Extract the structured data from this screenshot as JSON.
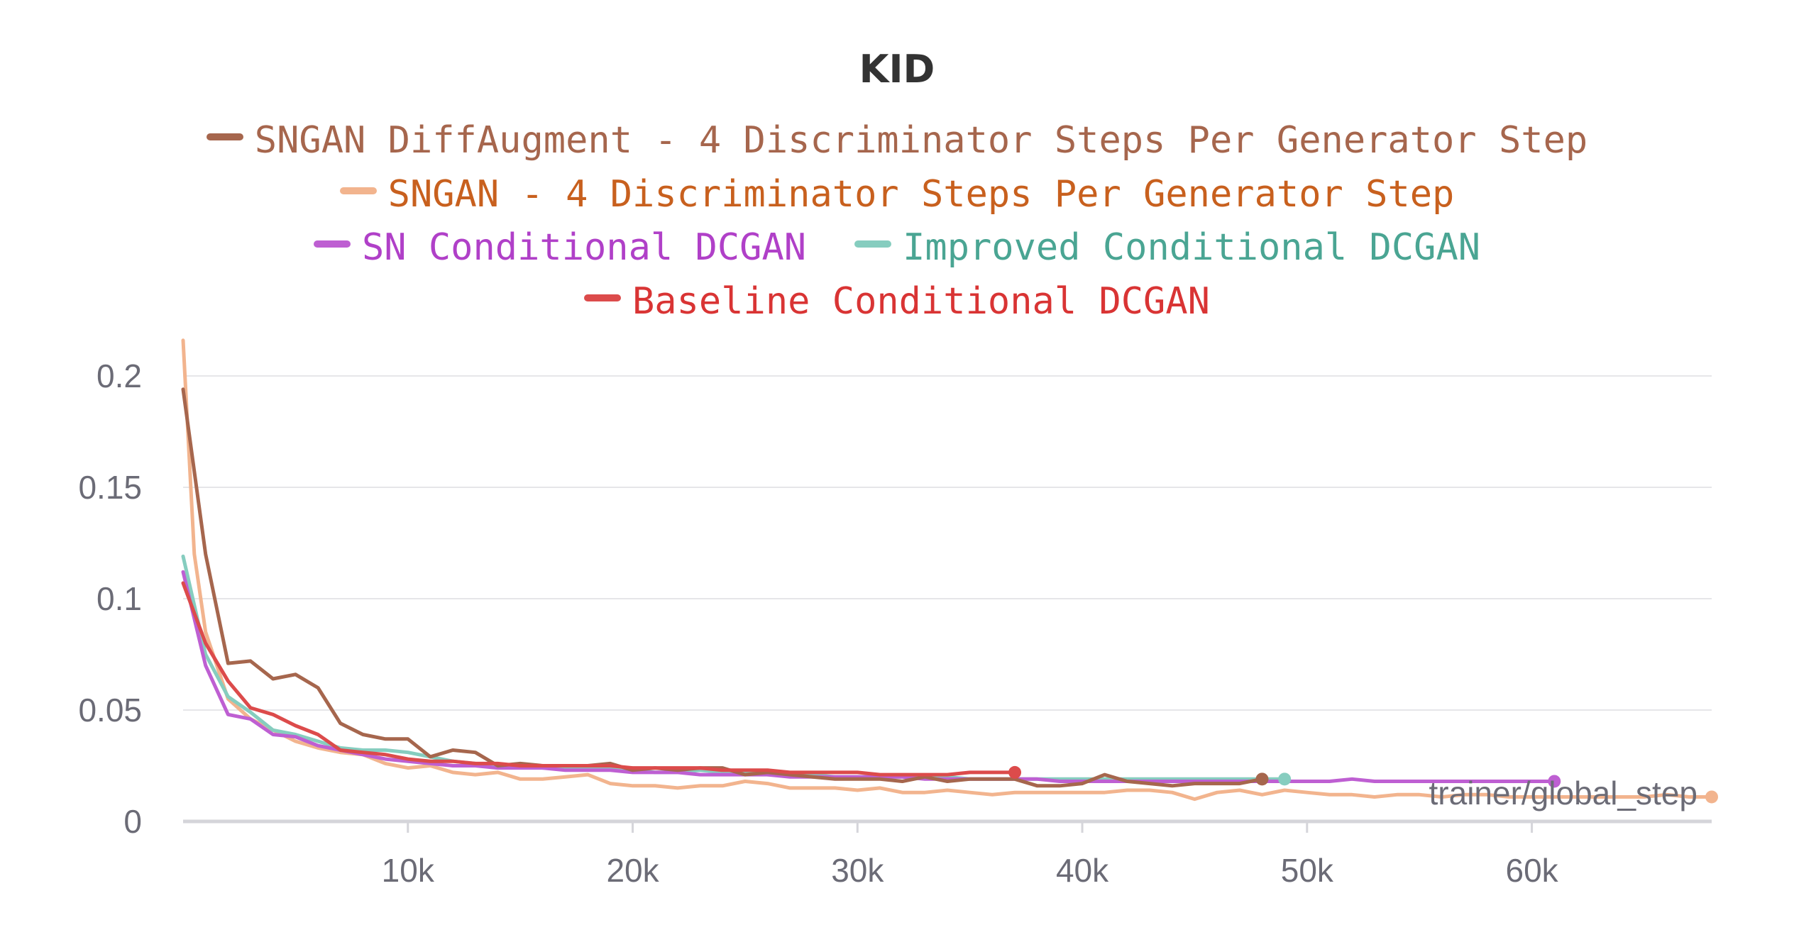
{
  "chart_data": {
    "type": "line",
    "title": "KID",
    "xlabel": "trainer/global_step",
    "ylabel": "",
    "xlim": [
      0,
      68000
    ],
    "ylim": [
      0,
      0.2
    ],
    "x_ticks": [
      {
        "value": 10000,
        "label": "10k"
      },
      {
        "value": 20000,
        "label": "20k"
      },
      {
        "value": 30000,
        "label": "30k"
      },
      {
        "value": 40000,
        "label": "40k"
      },
      {
        "value": 50000,
        "label": "50k"
      },
      {
        "value": 60000,
        "label": "60k"
      }
    ],
    "y_ticks": [
      {
        "value": 0,
        "label": "0"
      },
      {
        "value": 0.05,
        "label": "0.05"
      },
      {
        "value": 0.1,
        "label": "0.1"
      },
      {
        "value": 0.15,
        "label": "0.15"
      },
      {
        "value": 0.2,
        "label": "0.2"
      }
    ],
    "grid": true,
    "legend_position": "top",
    "series": [
      {
        "name": "SNGAN - 4 Discriminator Steps Per Generator Step",
        "color": "#f2b48e",
        "text_color": "#c8601e",
        "end_marker": true,
        "x": [
          0,
          500,
          1000,
          2000,
          3000,
          4000,
          5000,
          6000,
          7000,
          8000,
          9000,
          10000,
          11000,
          12000,
          13000,
          14000,
          15000,
          16000,
          17000,
          18000,
          19000,
          20000,
          21000,
          22000,
          23000,
          24000,
          25000,
          26000,
          27000,
          28000,
          29000,
          30000,
          31000,
          32000,
          33000,
          34000,
          35000,
          36000,
          37000,
          38000,
          39000,
          40000,
          41000,
          42000,
          43000,
          44000,
          45000,
          46000,
          47000,
          48000,
          49000,
          50000,
          51000,
          52000,
          53000,
          54000,
          55000,
          56000,
          57000,
          58000,
          59000,
          60000,
          61000,
          62000,
          63000,
          64000,
          65000,
          66000,
          67000,
          68000
        ],
        "y": [
          0.216,
          0.12,
          0.085,
          0.055,
          0.046,
          0.041,
          0.036,
          0.033,
          0.031,
          0.03,
          0.026,
          0.024,
          0.025,
          0.022,
          0.021,
          0.022,
          0.019,
          0.019,
          0.02,
          0.021,
          0.017,
          0.016,
          0.016,
          0.015,
          0.016,
          0.016,
          0.018,
          0.017,
          0.015,
          0.015,
          0.015,
          0.014,
          0.015,
          0.013,
          0.013,
          0.014,
          0.013,
          0.012,
          0.013,
          0.013,
          0.013,
          0.013,
          0.013,
          0.014,
          0.014,
          0.013,
          0.01,
          0.013,
          0.014,
          0.012,
          0.014,
          0.013,
          0.012,
          0.012,
          0.011,
          0.012,
          0.012,
          0.011,
          0.012,
          0.012,
          0.011,
          0.011,
          0.011,
          0.011,
          0.011,
          0.011,
          0.011,
          0.012,
          0.011,
          0.011
        ]
      },
      {
        "name": "Improved Conditional DCGAN",
        "color": "#86cdbf",
        "text_color": "#4aa593",
        "end_marker": true,
        "x": [
          0,
          1000,
          2000,
          3000,
          4000,
          5000,
          6000,
          7000,
          8000,
          9000,
          10000,
          11000,
          12000,
          13000,
          14000,
          15000,
          16000,
          17000,
          18000,
          19000,
          20000,
          21000,
          22000,
          23000,
          24000,
          25000,
          26000,
          27000,
          28000,
          29000,
          30000,
          31000,
          32000,
          33000,
          34000,
          35000,
          36000,
          37000,
          38000,
          39000,
          40000,
          41000,
          42000,
          43000,
          44000,
          45000,
          46000,
          47000,
          48000,
          49000
        ],
        "y": [
          0.119,
          0.075,
          0.056,
          0.049,
          0.041,
          0.039,
          0.036,
          0.033,
          0.032,
          0.032,
          0.031,
          0.029,
          0.027,
          0.026,
          0.025,
          0.025,
          0.024,
          0.024,
          0.024,
          0.024,
          0.023,
          0.022,
          0.022,
          0.023,
          0.022,
          0.022,
          0.021,
          0.021,
          0.021,
          0.02,
          0.02,
          0.02,
          0.02,
          0.02,
          0.02,
          0.019,
          0.019,
          0.019,
          0.019,
          0.019,
          0.019,
          0.019,
          0.019,
          0.019,
          0.019,
          0.019,
          0.019,
          0.019,
          0.019,
          0.019
        ]
      },
      {
        "name": "SN Conditional DCGAN",
        "color": "#be5fd2",
        "text_color": "#b040c8",
        "end_marker": true,
        "x": [
          0,
          1000,
          2000,
          3000,
          4000,
          5000,
          6000,
          7000,
          8000,
          9000,
          10000,
          11000,
          12000,
          13000,
          14000,
          15000,
          16000,
          17000,
          18000,
          19000,
          20000,
          21000,
          22000,
          23000,
          24000,
          25000,
          26000,
          27000,
          28000,
          29000,
          30000,
          31000,
          32000,
          33000,
          34000,
          35000,
          36000,
          37000,
          38000,
          39000,
          40000,
          41000,
          42000,
          43000,
          44000,
          45000,
          46000,
          47000,
          48000,
          49000,
          50000,
          51000,
          52000,
          53000,
          54000,
          55000,
          56000,
          57000,
          58000,
          59000,
          60000,
          61000
        ],
        "y": [
          0.112,
          0.07,
          0.048,
          0.046,
          0.039,
          0.038,
          0.034,
          0.032,
          0.03,
          0.028,
          0.027,
          0.026,
          0.025,
          0.025,
          0.024,
          0.024,
          0.024,
          0.023,
          0.023,
          0.023,
          0.022,
          0.022,
          0.022,
          0.021,
          0.021,
          0.021,
          0.021,
          0.02,
          0.02,
          0.02,
          0.02,
          0.02,
          0.02,
          0.019,
          0.019,
          0.019,
          0.019,
          0.019,
          0.019,
          0.018,
          0.018,
          0.018,
          0.018,
          0.018,
          0.018,
          0.018,
          0.018,
          0.018,
          0.018,
          0.018,
          0.018,
          0.018,
          0.019,
          0.018,
          0.018,
          0.018,
          0.018,
          0.018,
          0.018,
          0.018,
          0.018,
          0.018
        ]
      },
      {
        "name": "SNGAN DiffAugment - 4 Discriminator Steps Per Generator Step",
        "color": "#a6664d",
        "text_color": "#a6664d",
        "end_marker": true,
        "x": [
          0,
          1000,
          2000,
          3000,
          4000,
          5000,
          6000,
          7000,
          8000,
          9000,
          10000,
          11000,
          12000,
          13000,
          14000,
          15000,
          16000,
          17000,
          18000,
          19000,
          20000,
          21000,
          22000,
          23000,
          24000,
          25000,
          26000,
          27000,
          28000,
          29000,
          30000,
          31000,
          32000,
          33000,
          34000,
          35000,
          36000,
          37000,
          38000,
          39000,
          40000,
          41000,
          42000,
          43000,
          44000,
          45000,
          46000,
          47000,
          48000
        ],
        "y": [
          0.194,
          0.12,
          0.071,
          0.072,
          0.064,
          0.066,
          0.06,
          0.044,
          0.039,
          0.037,
          0.037,
          0.029,
          0.032,
          0.031,
          0.025,
          0.026,
          0.025,
          0.025,
          0.025,
          0.026,
          0.023,
          0.024,
          0.023,
          0.024,
          0.024,
          0.021,
          0.022,
          0.021,
          0.02,
          0.019,
          0.019,
          0.019,
          0.018,
          0.02,
          0.018,
          0.019,
          0.019,
          0.019,
          0.016,
          0.016,
          0.017,
          0.021,
          0.018,
          0.017,
          0.016,
          0.017,
          0.017,
          0.017,
          0.019
        ]
      },
      {
        "name": "Baseline Conditional DCGAN",
        "color": "#dc4b4b",
        "text_color": "#d93434",
        "end_marker": true,
        "x": [
          0,
          1000,
          2000,
          3000,
          4000,
          5000,
          6000,
          7000,
          8000,
          9000,
          10000,
          11000,
          12000,
          13000,
          14000,
          15000,
          16000,
          17000,
          18000,
          19000,
          20000,
          21000,
          22000,
          23000,
          24000,
          25000,
          26000,
          27000,
          28000,
          29000,
          30000,
          31000,
          32000,
          33000,
          34000,
          35000,
          36000,
          37000
        ],
        "y": [
          0.107,
          0.08,
          0.063,
          0.051,
          0.048,
          0.043,
          0.039,
          0.032,
          0.031,
          0.03,
          0.028,
          0.027,
          0.027,
          0.026,
          0.026,
          0.025,
          0.025,
          0.025,
          0.025,
          0.025,
          0.024,
          0.024,
          0.024,
          0.024,
          0.023,
          0.023,
          0.023,
          0.022,
          0.022,
          0.022,
          0.022,
          0.021,
          0.021,
          0.021,
          0.021,
          0.022,
          0.022,
          0.022
        ]
      }
    ]
  },
  "legend": {
    "rows": [
      [
        3
      ],
      [
        0
      ],
      [
        2,
        1
      ],
      [
        4
      ]
    ]
  }
}
